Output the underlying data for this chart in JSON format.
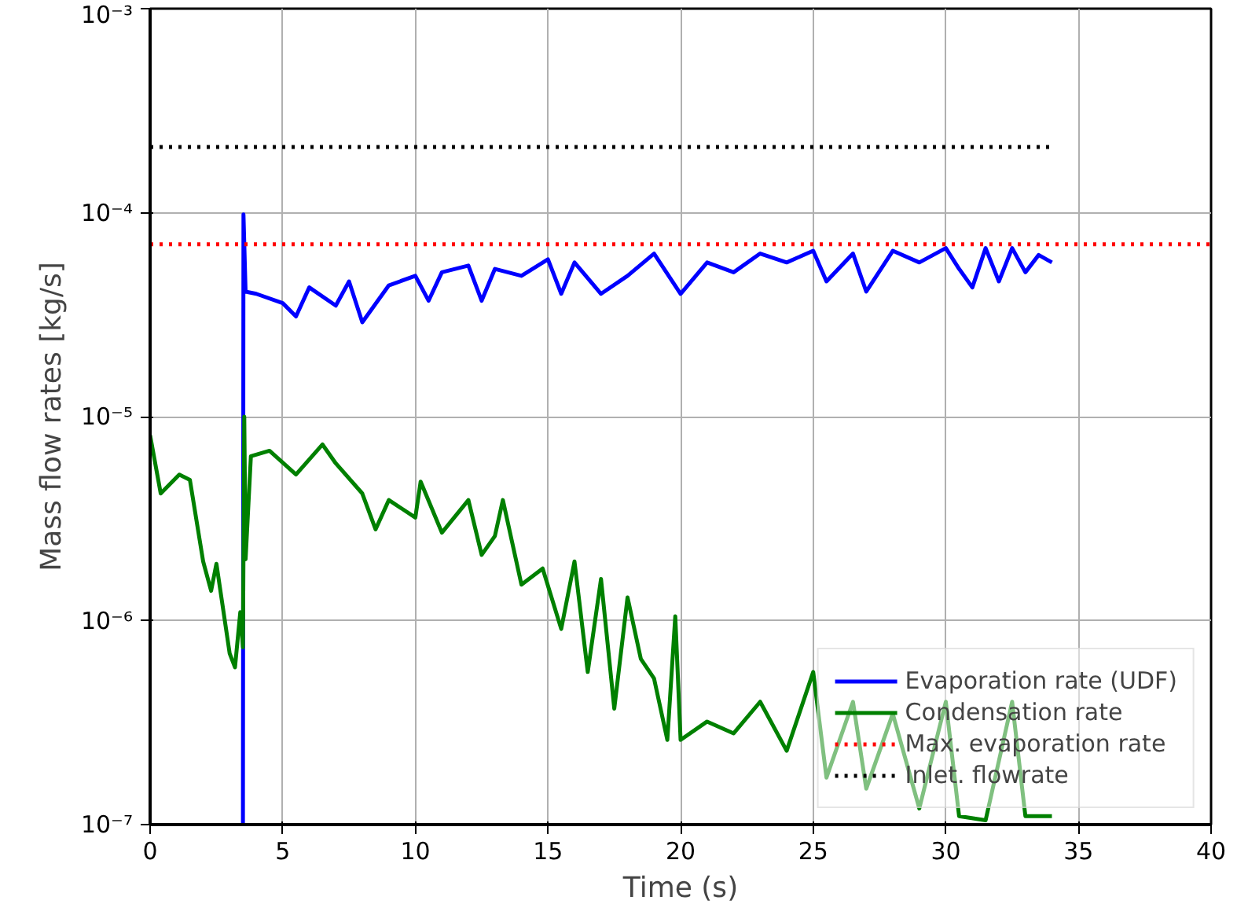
{
  "chart_data": {
    "type": "line",
    "xlabel": "Time (s)",
    "ylabel": "Mass flow rates [kg/s]",
    "log": "y",
    "grid": true,
    "legend": "bottom right",
    "xlim": [
      0,
      40
    ],
    "xticks": [
      0,
      5,
      10,
      15,
      20,
      25,
      30,
      35,
      40
    ],
    "ylim": [
      1e-07,
      0.001
    ],
    "yticks": [
      {
        "value": 1e-07,
        "label": "10⁻⁷"
      },
      {
        "value": 1e-06,
        "label": "10⁻⁶"
      },
      {
        "value": 1e-05,
        "label": "10⁻⁵"
      },
      {
        "value": 0.0001,
        "label": "10⁻⁴"
      },
      {
        "value": 0.001,
        "label": "10⁻³"
      }
    ],
    "series": [
      {
        "name": "Evaporation rate (UDF)",
        "color": "#0000ff",
        "line_style": "solid",
        "x": [
          3.5,
          3.52,
          3.6,
          4,
          5,
          5.5,
          6,
          7,
          7.5,
          8,
          9,
          10,
          10.5,
          11,
          12,
          12.5,
          13,
          14,
          15,
          15.5,
          16,
          17,
          18,
          19,
          20,
          21,
          22,
          23,
          24,
          25,
          25.5,
          26.5,
          27,
          28,
          29,
          30,
          30.5,
          31,
          31.5,
          32,
          32.5,
          33,
          33.5,
          34
        ],
        "values": [
          1e-07,
          9.8e-05,
          4.1e-05,
          4e-05,
          3.6e-05,
          3.1e-05,
          4.3e-05,
          3.5e-05,
          4.6e-05,
          2.9e-05,
          4.4e-05,
          4.9e-05,
          3.7e-05,
          5.1e-05,
          5.5e-05,
          3.7e-05,
          5.3e-05,
          4.9e-05,
          5.9e-05,
          4e-05,
          5.7e-05,
          4e-05,
          4.9e-05,
          6.3e-05,
          4e-05,
          5.7e-05,
          5.1e-05,
          6.3e-05,
          5.7e-05,
          6.5e-05,
          4.6e-05,
          6.3e-05,
          4.1e-05,
          6.5e-05,
          5.7e-05,
          6.7e-05,
          5.3e-05,
          4.3e-05,
          6.7e-05,
          4.6e-05,
          6.7e-05,
          5.1e-05,
          6.2e-05,
          5.7e-05
        ]
      },
      {
        "name": "Condensation rate",
        "color": "#008000",
        "line_style": "solid",
        "x": [
          0,
          0.4,
          1.1,
          1.5,
          2,
          2.3,
          2.5,
          3,
          3.2,
          3.4,
          3.5,
          3.55,
          3.6,
          3.8,
          4.5,
          5.5,
          6.5,
          7,
          8,
          8.5,
          9,
          10,
          10.2,
          11,
          12,
          12.5,
          13,
          13.3,
          14,
          14.8,
          15.5,
          16,
          16.5,
          17,
          17.5,
          18,
          18.5,
          19,
          19.5,
          19.8,
          20,
          21,
          22,
          23,
          24,
          25,
          25.5,
          26.5,
          27,
          28,
          29,
          30,
          30.5,
          31.5,
          32.5,
          33,
          34
        ],
        "values": [
          8.1e-06,
          4.2e-06,
          5.2e-06,
          4.9e-06,
          1.95e-06,
          1.4e-06,
          1.9e-06,
          6.9e-07,
          5.9e-07,
          1.1e-06,
          7.4e-07,
          1e-05,
          2e-06,
          6.4e-06,
          6.8e-06,
          5.2e-06,
          7.3e-06,
          5.9e-06,
          4.2e-06,
          2.8e-06,
          3.9e-06,
          3.2e-06,
          4.8e-06,
          2.7e-06,
          3.9e-06,
          2.1e-06,
          2.6e-06,
          3.9e-06,
          1.5e-06,
          1.8e-06,
          9.1e-07,
          1.95e-06,
          5.6e-07,
          1.6e-06,
          3.7e-07,
          1.3e-06,
          6.5e-07,
          5.2e-07,
          2.6e-07,
          1.05e-06,
          2.6e-07,
          3.2e-07,
          2.8e-07,
          4e-07,
          2.3e-07,
          5.6e-07,
          1.7e-07,
          4e-07,
          1.5e-07,
          3.5e-07,
          1.2e-07,
          4e-07,
          1.1e-07,
          1.05e-07,
          4e-07,
          1.1e-07,
          1.1e-07
        ]
      },
      {
        "name": "Max. evaporation rate",
        "color": "#ff0000",
        "line_style": "dotted",
        "x": [
          0,
          40
        ],
        "values": [
          7e-05,
          7e-05
        ]
      },
      {
        "name": "Inlet. flowrate",
        "color": "#000000",
        "line_style": "dotted",
        "x": [
          0,
          34
        ],
        "values": [
          0.00021,
          0.00021
        ]
      }
    ]
  }
}
